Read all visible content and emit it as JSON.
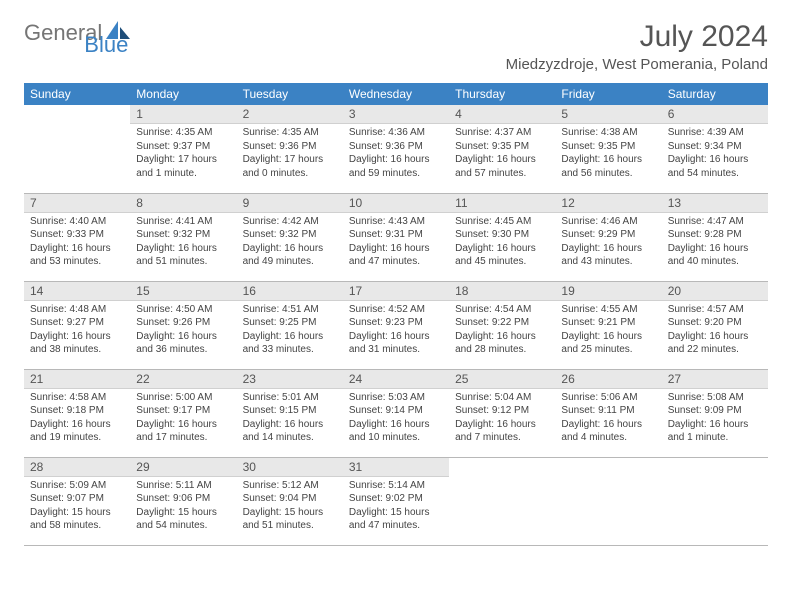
{
  "logo": {
    "part1": "General",
    "part2": "Blue"
  },
  "title": "July 2024",
  "subtitle": "Miedzyzdroje, West Pomerania, Poland",
  "weekdays": [
    "Sunday",
    "Monday",
    "Tuesday",
    "Wednesday",
    "Thursday",
    "Friday",
    "Saturday"
  ],
  "colors": {
    "header_bg": "#3b82c4",
    "header_text": "#ffffff",
    "daynum_bg": "#e8e8e8",
    "body_text": "#444444",
    "title_text": "#555555"
  },
  "typography": {
    "title_fontsize": 30,
    "subtitle_fontsize": 15,
    "weekday_fontsize": 12,
    "daynum_fontsize": 12,
    "body_fontsize": 10
  },
  "layout": {
    "columns": 7,
    "rows": 5,
    "first_day_column": 1
  },
  "days": [
    {
      "n": "1",
      "sunrise": "4:35 AM",
      "sunset": "9:37 PM",
      "daylight": "17 hours and 1 minute."
    },
    {
      "n": "2",
      "sunrise": "4:35 AM",
      "sunset": "9:36 PM",
      "daylight": "17 hours and 0 minutes."
    },
    {
      "n": "3",
      "sunrise": "4:36 AM",
      "sunset": "9:36 PM",
      "daylight": "16 hours and 59 minutes."
    },
    {
      "n": "4",
      "sunrise": "4:37 AM",
      "sunset": "9:35 PM",
      "daylight": "16 hours and 57 minutes."
    },
    {
      "n": "5",
      "sunrise": "4:38 AM",
      "sunset": "9:35 PM",
      "daylight": "16 hours and 56 minutes."
    },
    {
      "n": "6",
      "sunrise": "4:39 AM",
      "sunset": "9:34 PM",
      "daylight": "16 hours and 54 minutes."
    },
    {
      "n": "7",
      "sunrise": "4:40 AM",
      "sunset": "9:33 PM",
      "daylight": "16 hours and 53 minutes."
    },
    {
      "n": "8",
      "sunrise": "4:41 AM",
      "sunset": "9:32 PM",
      "daylight": "16 hours and 51 minutes."
    },
    {
      "n": "9",
      "sunrise": "4:42 AM",
      "sunset": "9:32 PM",
      "daylight": "16 hours and 49 minutes."
    },
    {
      "n": "10",
      "sunrise": "4:43 AM",
      "sunset": "9:31 PM",
      "daylight": "16 hours and 47 minutes."
    },
    {
      "n": "11",
      "sunrise": "4:45 AM",
      "sunset": "9:30 PM",
      "daylight": "16 hours and 45 minutes."
    },
    {
      "n": "12",
      "sunrise": "4:46 AM",
      "sunset": "9:29 PM",
      "daylight": "16 hours and 43 minutes."
    },
    {
      "n": "13",
      "sunrise": "4:47 AM",
      "sunset": "9:28 PM",
      "daylight": "16 hours and 40 minutes."
    },
    {
      "n": "14",
      "sunrise": "4:48 AM",
      "sunset": "9:27 PM",
      "daylight": "16 hours and 38 minutes."
    },
    {
      "n": "15",
      "sunrise": "4:50 AM",
      "sunset": "9:26 PM",
      "daylight": "16 hours and 36 minutes."
    },
    {
      "n": "16",
      "sunrise": "4:51 AM",
      "sunset": "9:25 PM",
      "daylight": "16 hours and 33 minutes."
    },
    {
      "n": "17",
      "sunrise": "4:52 AM",
      "sunset": "9:23 PM",
      "daylight": "16 hours and 31 minutes."
    },
    {
      "n": "18",
      "sunrise": "4:54 AM",
      "sunset": "9:22 PM",
      "daylight": "16 hours and 28 minutes."
    },
    {
      "n": "19",
      "sunrise": "4:55 AM",
      "sunset": "9:21 PM",
      "daylight": "16 hours and 25 minutes."
    },
    {
      "n": "20",
      "sunrise": "4:57 AM",
      "sunset": "9:20 PM",
      "daylight": "16 hours and 22 minutes."
    },
    {
      "n": "21",
      "sunrise": "4:58 AM",
      "sunset": "9:18 PM",
      "daylight": "16 hours and 19 minutes."
    },
    {
      "n": "22",
      "sunrise": "5:00 AM",
      "sunset": "9:17 PM",
      "daylight": "16 hours and 17 minutes."
    },
    {
      "n": "23",
      "sunrise": "5:01 AM",
      "sunset": "9:15 PM",
      "daylight": "16 hours and 14 minutes."
    },
    {
      "n": "24",
      "sunrise": "5:03 AM",
      "sunset": "9:14 PM",
      "daylight": "16 hours and 10 minutes."
    },
    {
      "n": "25",
      "sunrise": "5:04 AM",
      "sunset": "9:12 PM",
      "daylight": "16 hours and 7 minutes."
    },
    {
      "n": "26",
      "sunrise": "5:06 AM",
      "sunset": "9:11 PM",
      "daylight": "16 hours and 4 minutes."
    },
    {
      "n": "27",
      "sunrise": "5:08 AM",
      "sunset": "9:09 PM",
      "daylight": "16 hours and 1 minute."
    },
    {
      "n": "28",
      "sunrise": "5:09 AM",
      "sunset": "9:07 PM",
      "daylight": "15 hours and 58 minutes."
    },
    {
      "n": "29",
      "sunrise": "5:11 AM",
      "sunset": "9:06 PM",
      "daylight": "15 hours and 54 minutes."
    },
    {
      "n": "30",
      "sunrise": "5:12 AM",
      "sunset": "9:04 PM",
      "daylight": "15 hours and 51 minutes."
    },
    {
      "n": "31",
      "sunrise": "5:14 AM",
      "sunset": "9:02 PM",
      "daylight": "15 hours and 47 minutes."
    }
  ],
  "labels": {
    "sunrise": "Sunrise:",
    "sunset": "Sunset:",
    "daylight": "Daylight:"
  }
}
